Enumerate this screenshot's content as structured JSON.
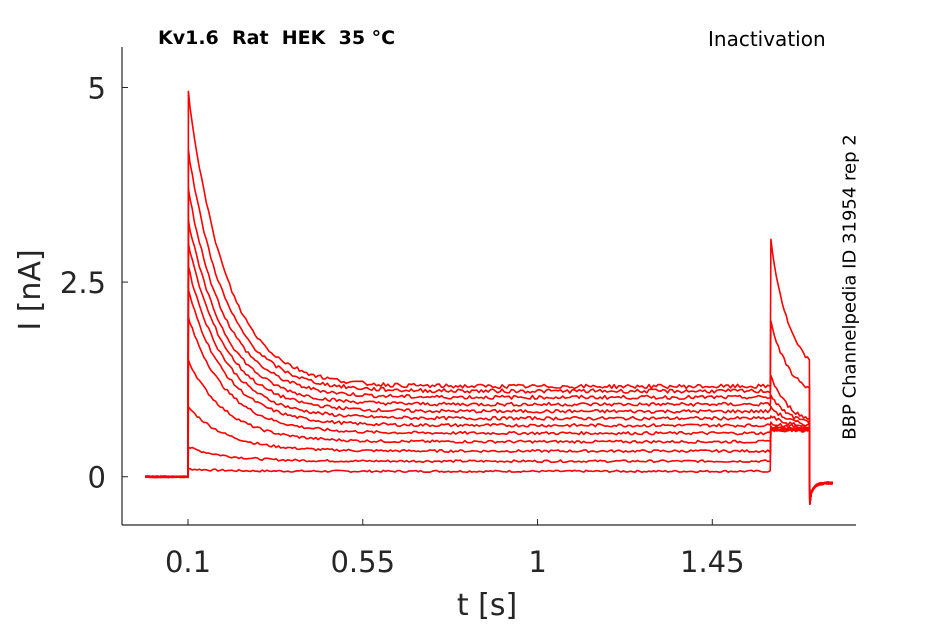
{
  "title_left": "Kv1.6  Rat  HEK  35 °C",
  "title_right": "Inactivation",
  "side_label": "BBP Channelpedia ID 31954 rep 2",
  "chart_data": {
    "type": "line",
    "xlabel": "t [s]",
    "ylabel": "I [nA]",
    "xlim": [
      -0.07,
      1.82
    ],
    "ylim": [
      -0.62,
      5.52
    ],
    "xticks": [
      0.1,
      0.55,
      1,
      1.45
    ],
    "xtick_labels": [
      "0.1",
      "0.55",
      "1",
      "1.45"
    ],
    "yticks": [
      0,
      2.5,
      5
    ],
    "ytick_labels": [
      "0",
      "2.5",
      "5"
    ],
    "grid": false,
    "color": "#ff0000",
    "protocol_times_s": {
      "baseline_start": -0.01,
      "step_on": 0.1,
      "step_off": 1.6,
      "tail_off": 1.7,
      "end": 1.76
    },
    "series": [
      {
        "peak": 0.1,
        "steady": 0.07,
        "tail_peak": 0.6,
        "tail_end": 0.6
      },
      {
        "peak": 0.38,
        "steady": 0.2,
        "tail_peak": 0.6,
        "tail_end": 0.6
      },
      {
        "peak": 0.9,
        "steady": 0.33,
        "tail_peak": 0.6,
        "tail_end": 0.6
      },
      {
        "peak": 1.5,
        "steady": 0.45,
        "tail_peak": 0.62,
        "tail_end": 0.6
      },
      {
        "peak": 2.05,
        "steady": 0.56,
        "tail_peak": 0.65,
        "tail_end": 0.6
      },
      {
        "peak": 2.4,
        "steady": 0.66,
        "tail_peak": 0.7,
        "tail_end": 0.62
      },
      {
        "peak": 2.7,
        "steady": 0.75,
        "tail_peak": 0.78,
        "tail_end": 0.62
      },
      {
        "peak": 3.0,
        "steady": 0.84,
        "tail_peak": 0.9,
        "tail_end": 0.63
      },
      {
        "peak": 3.3,
        "steady": 0.93,
        "tail_peak": 1.05,
        "tail_end": 0.64
      },
      {
        "peak": 3.7,
        "steady": 1.02,
        "tail_peak": 1.3,
        "tail_end": 0.65
      },
      {
        "peak": 4.2,
        "steady": 1.1,
        "tail_peak": 2.0,
        "tail_end": 1.0
      },
      {
        "peak": 4.95,
        "steady": 1.16,
        "tail_peak": 3.05,
        "tail_end": 1.25
      }
    ]
  }
}
